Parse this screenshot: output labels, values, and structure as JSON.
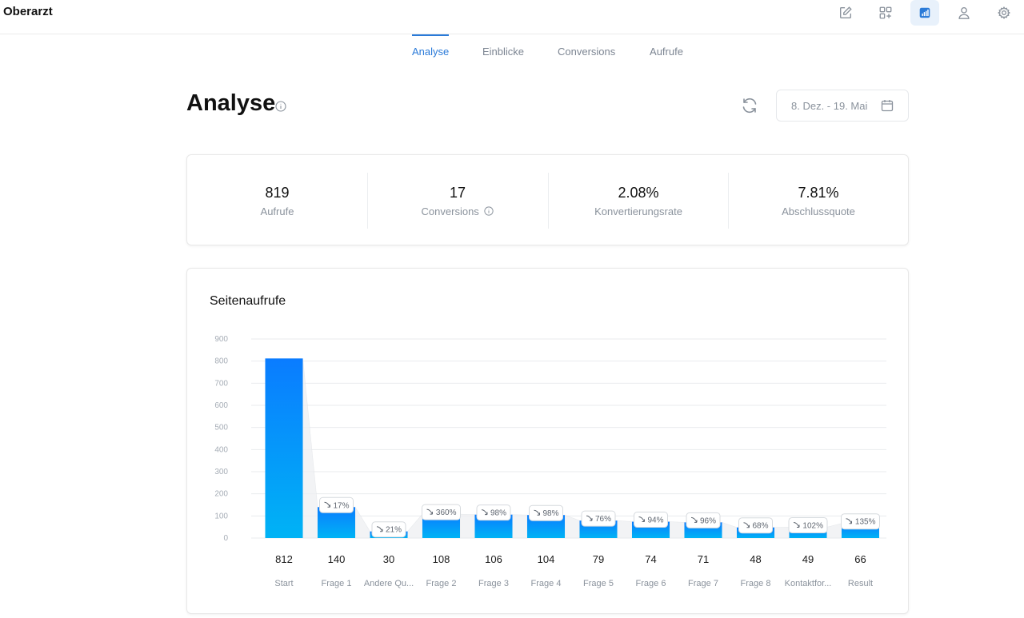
{
  "app": {
    "title": "Oberarzt"
  },
  "toolbar": {
    "items": [
      {
        "name": "edit-icon",
        "active": false
      },
      {
        "name": "add-block-icon",
        "active": false
      },
      {
        "name": "analytics-icon",
        "active": true
      },
      {
        "name": "user-icon",
        "active": false
      },
      {
        "name": "settings-icon",
        "active": false
      }
    ]
  },
  "tabs": [
    {
      "label": "Analyse",
      "active": true
    },
    {
      "label": "Einblicke",
      "active": false
    },
    {
      "label": "Conversions",
      "active": false
    },
    {
      "label": "Aufrufe",
      "active": false
    }
  ],
  "page": {
    "title": "Analyse",
    "date_range": "8. Dez. - 19. Mai"
  },
  "stats": [
    {
      "value": "819",
      "label": "Aufrufe"
    },
    {
      "value": "17",
      "label": "Conversions"
    },
    {
      "value": "2.08%",
      "label": "Konvertierungsrate"
    },
    {
      "value": "7.81%",
      "label": "Abschlussquote"
    }
  ],
  "colors": {
    "accent": "#2a7ad8",
    "bar_top": "#0a7cff",
    "bar_bottom": "#00b3f5",
    "muted": "#8a929c"
  },
  "chart_data": {
    "type": "bar",
    "title": "Seitenaufrufe",
    "categories": [
      "Start",
      "Frage 1",
      "Andere Qu...",
      "Frage 2",
      "Frage 3",
      "Frage 4",
      "Frage 5",
      "Frage 6",
      "Frage 7",
      "Frage 8",
      "Kontaktfor...",
      "Result"
    ],
    "values": [
      812,
      140,
      30,
      108,
      106,
      104,
      79,
      74,
      71,
      48,
      49,
      66
    ],
    "rates": [
      null,
      "17%",
      "21%",
      "360%",
      "98%",
      "98%",
      "76%",
      "94%",
      "96%",
      "68%",
      "102%",
      "135%"
    ],
    "ylim": [
      0,
      900
    ],
    "yticks": [
      0,
      100,
      200,
      300,
      400,
      500,
      600,
      700,
      800,
      900
    ],
    "grid": true
  }
}
